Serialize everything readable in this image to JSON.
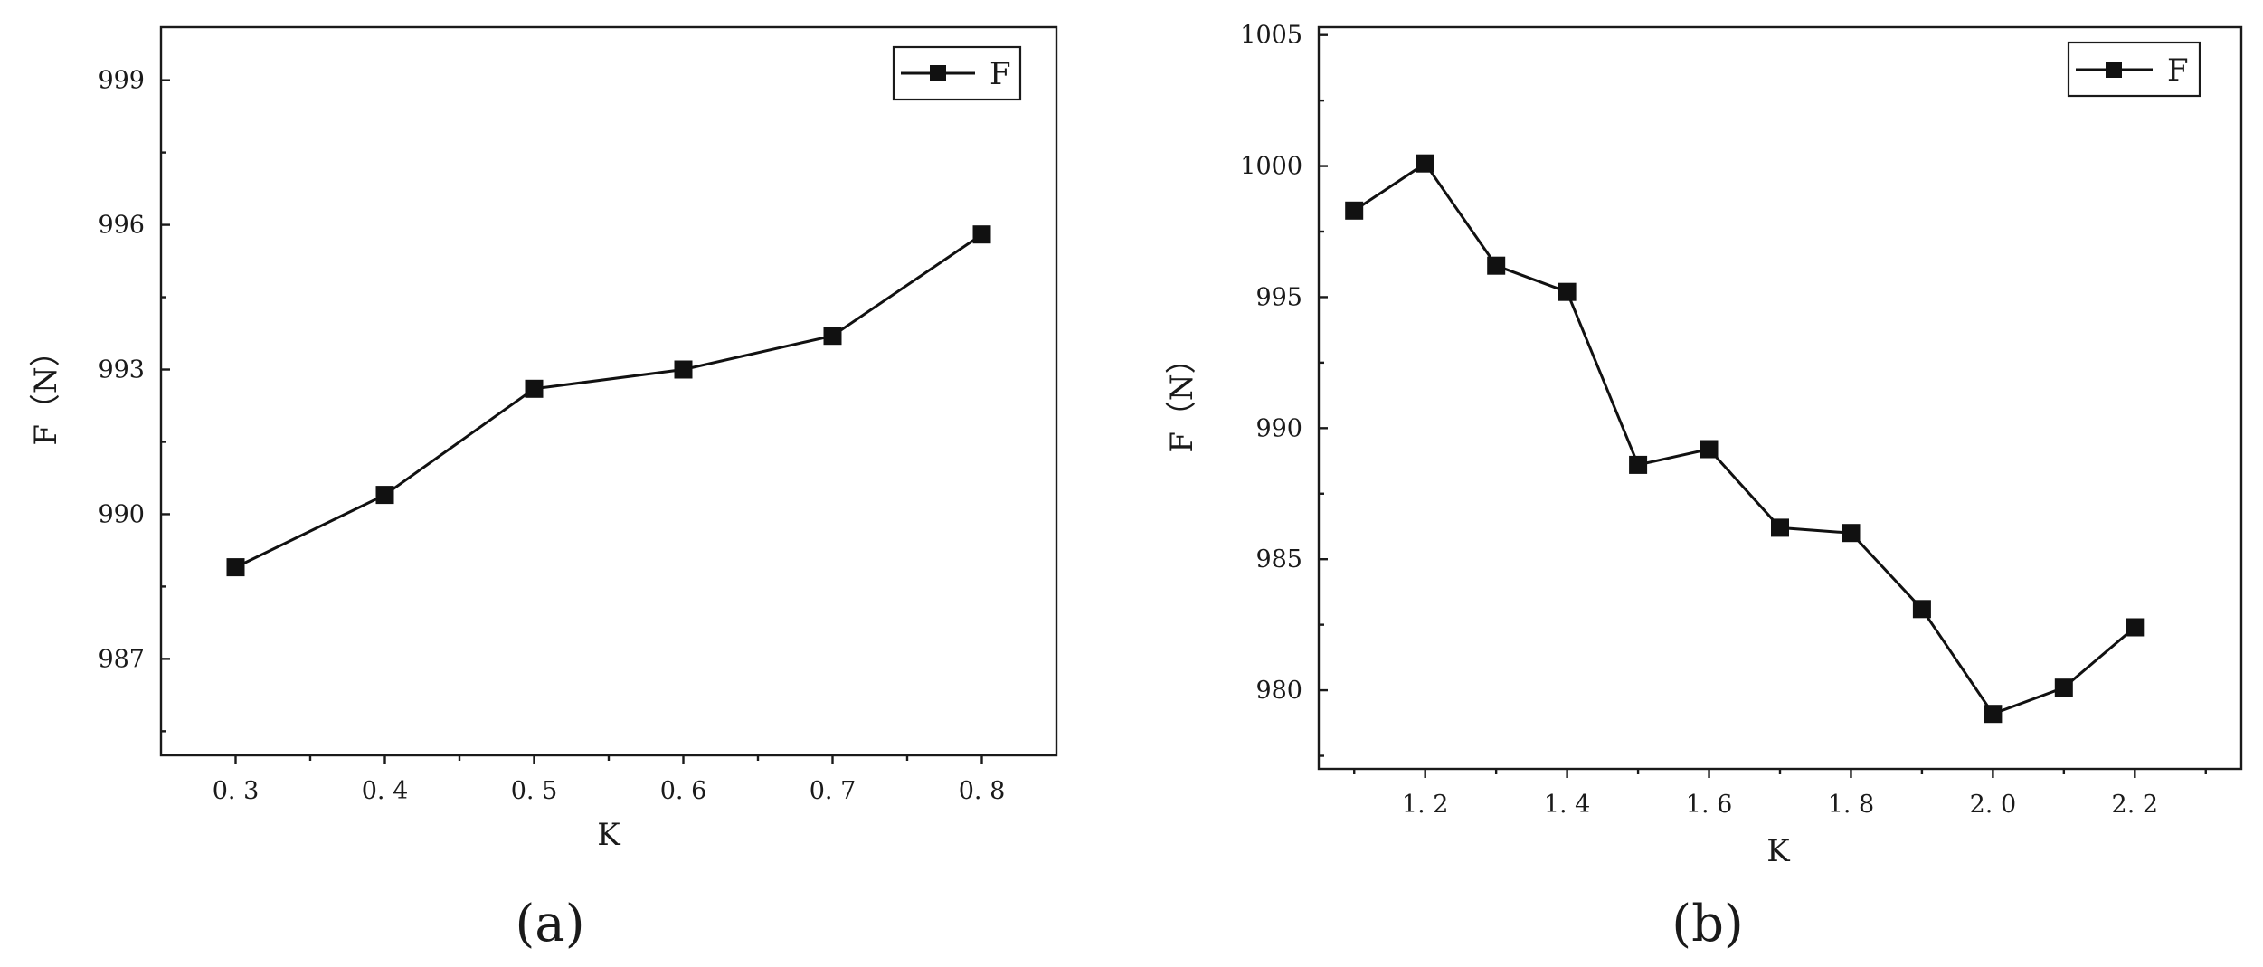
{
  "chart_data": [
    {
      "type": "line",
      "panel_label": "(a)",
      "xlabel": "K",
      "ylabel": "F（N）",
      "x": [
        0.3,
        0.4,
        0.5,
        0.6,
        0.7,
        0.8
      ],
      "series": [
        {
          "name": "F",
          "values": [
            988.9,
            990.4,
            992.6,
            993.0,
            993.7,
            995.8
          ]
        }
      ],
      "x_ticks": [
        0.3,
        0.4,
        0.5,
        0.6,
        0.7,
        0.8
      ],
      "x_tick_labels": [
        "0. 3",
        "0. 4",
        "0. 5",
        "0. 6",
        "0. 7",
        "0. 8"
      ],
      "y_ticks": [
        987,
        990,
        993,
        996,
        999
      ],
      "y_tick_labels": [
        "987",
        "990",
        "993",
        "996",
        "999"
      ],
      "xlim": [
        0.25,
        0.85
      ],
      "ylim": [
        985,
        1000.1
      ],
      "grid": false,
      "legend_position": "top-right",
      "marker": "square",
      "color": "#111111"
    },
    {
      "type": "line",
      "panel_label": "(b)",
      "xlabel": "K",
      "ylabel": "F（N）",
      "x": [
        1.1,
        1.2,
        1.3,
        1.4,
        1.5,
        1.6,
        1.7,
        1.8,
        1.9,
        2.0,
        2.1,
        2.2
      ],
      "series": [
        {
          "name": "F",
          "values": [
            998.3,
            1000.1,
            996.2,
            995.2,
            988.6,
            989.2,
            986.2,
            986.0,
            983.1,
            979.1,
            980.1,
            982.4
          ]
        }
      ],
      "x_ticks": [
        1.2,
        1.4,
        1.6,
        1.8,
        2.0,
        2.2
      ],
      "x_tick_labels": [
        "1. 2",
        "1. 4",
        "1. 6",
        "1. 8",
        "2. 0",
        "2. 2"
      ],
      "y_ticks": [
        980,
        985,
        990,
        995,
        1000,
        1005
      ],
      "y_tick_labels": [
        "980",
        "985",
        "990",
        "995",
        "1000",
        "1005"
      ],
      "xlim": [
        1.05,
        2.35
      ],
      "ylim": [
        977,
        1005.3
      ],
      "grid": false,
      "legend_position": "top-right",
      "marker": "square",
      "color": "#111111"
    }
  ]
}
